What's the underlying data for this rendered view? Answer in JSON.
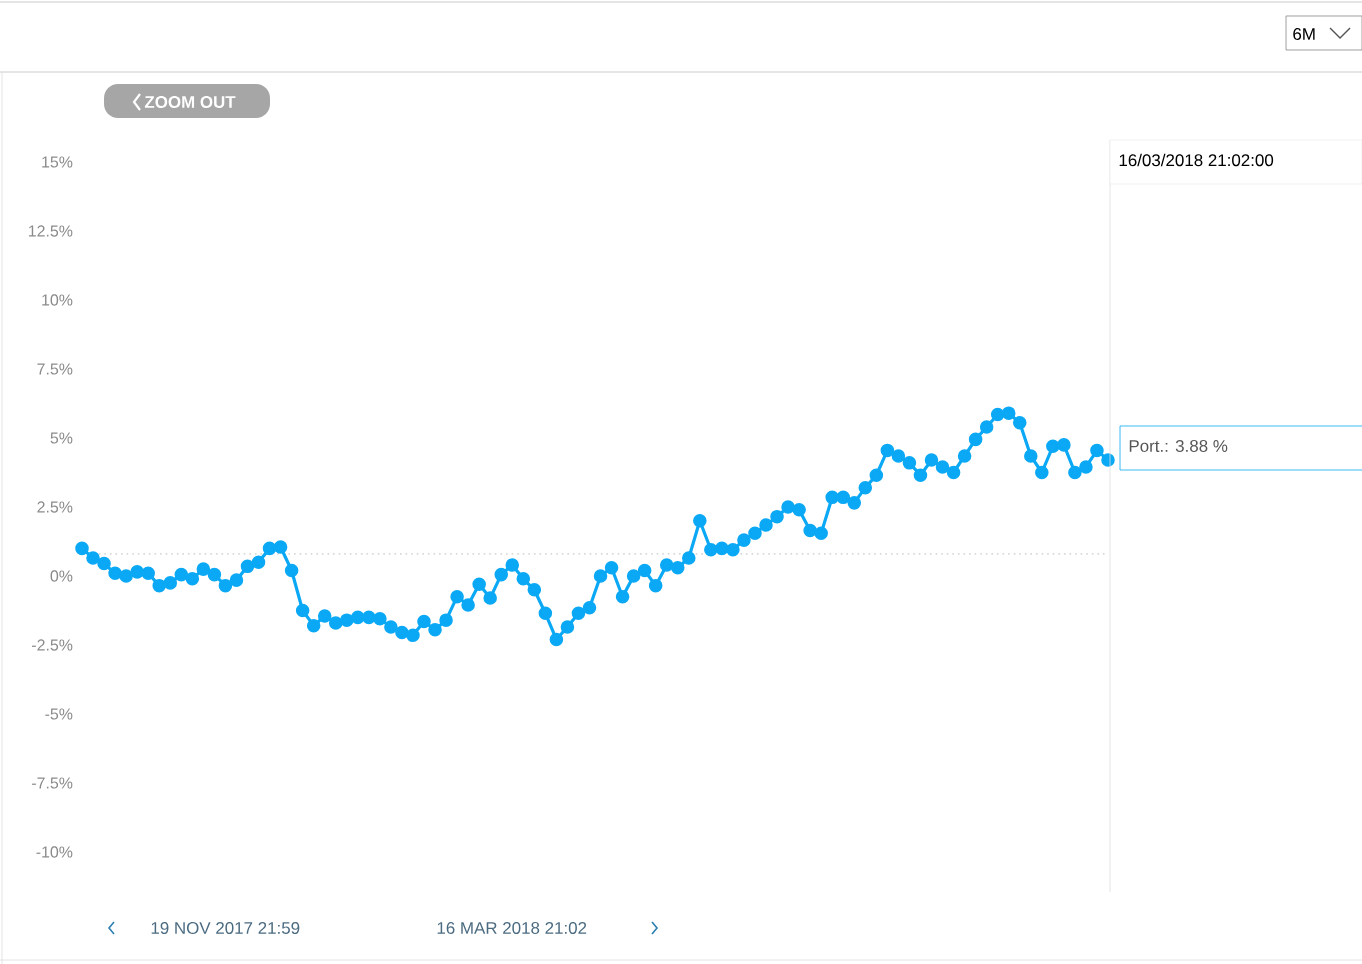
{
  "chart_data": {
    "type": "line",
    "categories": [
      null,
      null,
      null,
      null,
      null,
      null,
      null,
      null,
      null,
      null,
      null,
      null,
      null,
      null,
      null,
      null,
      null,
      null,
      null,
      null,
      null,
      null,
      null,
      null,
      null,
      null,
      null,
      null,
      null,
      null,
      null,
      null,
      null,
      null,
      null,
      null,
      null,
      null,
      null,
      null,
      null,
      null,
      null,
      null,
      null,
      null,
      null,
      null,
      null,
      null,
      null,
      null,
      null,
      null,
      null,
      null,
      null,
      null,
      null,
      null,
      null,
      null,
      null,
      null,
      null,
      null,
      null,
      null,
      null,
      null,
      null,
      null,
      null,
      null,
      null,
      null,
      null,
      null,
      null,
      null,
      null,
      null,
      null,
      null,
      null,
      null,
      null,
      null,
      null,
      null,
      null,
      null,
      null,
      null
    ],
    "series": [
      {
        "color": "#0aa8f5",
        "values": [
          1.0,
          0.65,
          0.45,
          0.1,
          0.0,
          0.15,
          0.1,
          -0.35,
          -0.25,
          0.05,
          -0.1,
          0.25,
          0.05,
          -0.35,
          -0.15,
          0.35,
          0.5,
          1.0,
          1.05,
          0.2,
          -1.25,
          -1.8,
          -1.45,
          -1.7,
          -1.6,
          -1.5,
          -1.5,
          -1.55,
          -1.85,
          -2.05,
          -2.15,
          -1.65,
          -1.95,
          -1.6,
          -0.75,
          -1.05,
          -0.3,
          -0.8,
          0.05,
          0.4,
          -0.1,
          -0.5,
          -1.35,
          -2.3,
          -1.85,
          -1.35,
          -1.15,
          0.0,
          0.3,
          -0.75,
          0.0,
          0.2,
          -0.35,
          0.4,
          0.3,
          0.65,
          2.0,
          0.95,
          1.0,
          0.95,
          1.3,
          1.55,
          1.85,
          2.15,
          2.5,
          2.4,
          1.65,
          1.55,
          2.85,
          2.85,
          2.65,
          3.2,
          3.65,
          4.55,
          4.35,
          4.1,
          3.65,
          4.2,
          3.95,
          3.75,
          4.35,
          4.95,
          5.4,
          5.85,
          5.9,
          5.55,
          4.35,
          3.75,
          4.7,
          4.75,
          3.75,
          3.95,
          4.55,
          4.2
        ]
      }
    ],
    "marker": "circle",
    "line_style": "solid",
    "ylim": [
      -10,
      15
    ],
    "yticks": [
      {
        "value": -10,
        "label": "-10%"
      },
      {
        "value": -7.5,
        "label": "-7.5%"
      },
      {
        "value": -5,
        "label": "-5%"
      },
      {
        "value": -2.5,
        "label": "-2.5%"
      },
      {
        "value": 0,
        "label": "0%"
      },
      {
        "value": 2.5,
        "label": "2.5%"
      },
      {
        "value": 5,
        "label": "5%"
      },
      {
        "value": 7.5,
        "label": "7.5%"
      },
      {
        "value": 10,
        "label": "10%"
      },
      {
        "value": 12.5,
        "label": "12.5%"
      },
      {
        "value": 15,
        "label": "15%"
      }
    ],
    "tick_labels": "y",
    "grid": false,
    "ref_lines": [
      {
        "axis": "y",
        "value": 0.8,
        "color": "#d8d8d8",
        "line_style": "dotted"
      }
    ],
    "annotations": [
      "6M",
      "ZOOM OUT",
      "16/03/2018 21:02:00",
      "Port.: 3.88 %",
      "19 NOV 2017 21:59",
      "16 MAR 2018 21:02"
    ]
  }
}
